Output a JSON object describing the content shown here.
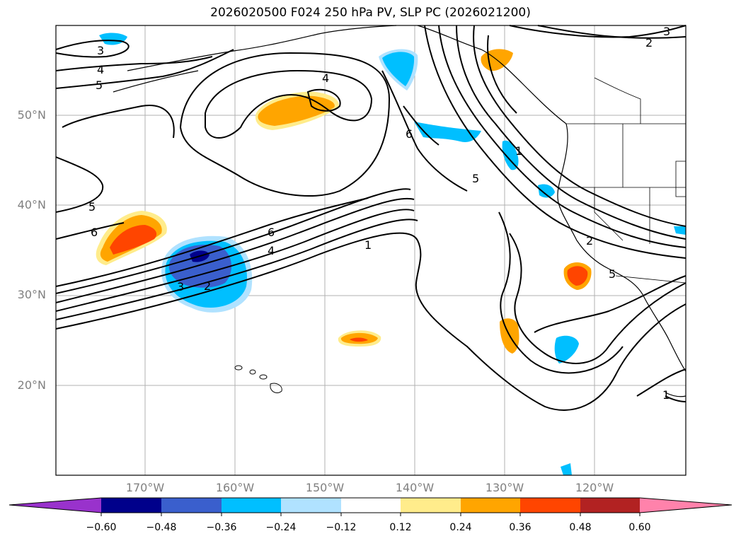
{
  "title": "2026020500 F024 250 hPa PV, SLP PC (2026021200)",
  "map": {
    "lat_labels": [
      "50°N",
      "40°N",
      "30°N",
      "20°N"
    ],
    "lon_labels": [
      "170°W",
      "160°W",
      "150°W",
      "140°W",
      "130°W",
      "120°W"
    ],
    "contour_labels": [
      "3",
      "4",
      "5",
      "2",
      "3",
      "4",
      "6",
      "5",
      "6",
      "6",
      "4",
      "1",
      "3",
      "2",
      "5",
      "2",
      "1",
      "5",
      "1"
    ]
  },
  "colorbar": {
    "ticks": [
      "−0.60",
      "−0.48",
      "−0.36",
      "−0.24",
      "−0.12",
      "0.12",
      "0.24",
      "0.36",
      "0.48",
      "0.60"
    ],
    "colors": [
      "#9932cc",
      "#00008b",
      "#3a5fcd",
      "#00bfff",
      "#b0e2ff",
      "#ffffff",
      "#ffec8b",
      "#ffa500",
      "#ff4500",
      "#b22222",
      "#ff82ab"
    ]
  }
}
